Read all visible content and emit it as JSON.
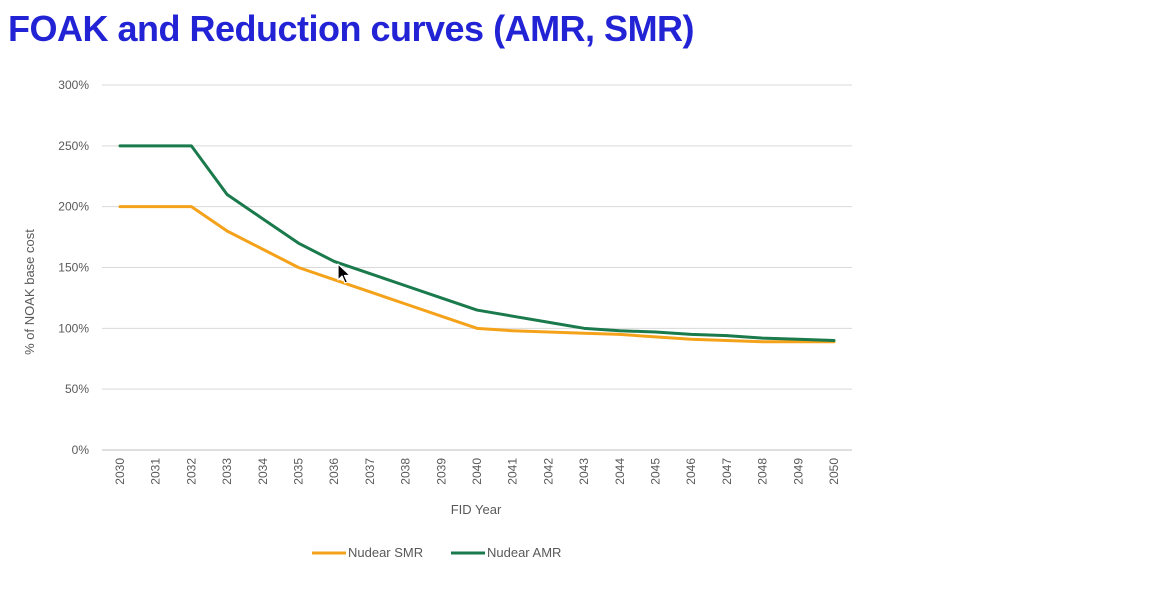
{
  "slide": {
    "title": "FOAK and Reduction curves (AMR, SMR)"
  },
  "chart_data": {
    "type": "line",
    "xlabel": "FID Year",
    "ylabel": "% of NOAK base cost",
    "ylim": [
      0,
      300
    ],
    "y_ticks": [
      "0%",
      "50%",
      "100%",
      "150%",
      "200%",
      "250%",
      "300%"
    ],
    "grid": "horizontal",
    "legend_position": "bottom",
    "x": [
      "2030",
      "2031",
      "2032",
      "2033",
      "2034",
      "2035",
      "2036",
      "2037",
      "2038",
      "2039",
      "2040",
      "2041",
      "2042",
      "2043",
      "2044",
      "2045",
      "2046",
      "2047",
      "2048",
      "2049",
      "2050"
    ],
    "series": [
      {
        "name": "Nudear SMR",
        "color": "#f5a21b",
        "values": [
          200,
          200,
          200,
          180,
          165,
          150,
          140,
          130,
          120,
          110,
          100,
          98,
          97,
          96,
          95,
          93,
          91,
          90,
          89,
          89,
          89
        ]
      },
      {
        "name": "Nudear AMR",
        "color": "#1a7a4c",
        "values": [
          250,
          250,
          250,
          210,
          190,
          170,
          155,
          145,
          135,
          125,
          115,
          110,
          105,
          100,
          98,
          97,
          95,
          94,
          92,
          91,
          90
        ]
      }
    ]
  }
}
